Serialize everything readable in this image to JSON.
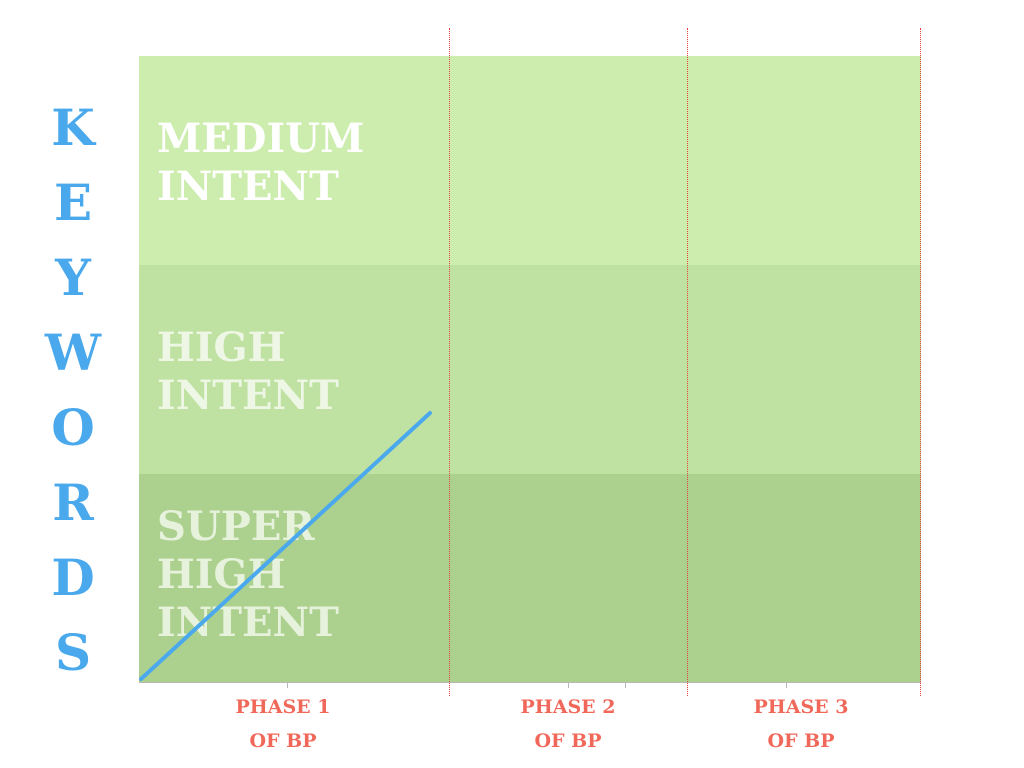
{
  "vertical_title_letters": [
    "K",
    "E",
    "Y",
    "W",
    "O",
    "R",
    "D",
    "S"
  ],
  "bands": [
    {
      "label": "MEDIUM\nINTENT",
      "color": "#ccedae",
      "text_color": "#ffffff"
    },
    {
      "label": "HIGH\nINTENT",
      "color": "#bfe2a2",
      "text_color": "#eef7e6"
    },
    {
      "label": "SUPER\nHIGH\nINTENT",
      "color": "#acd08e",
      "text_color": "#e7f2dd"
    }
  ],
  "phases": [
    {
      "label": "PHASE 1\nOF BP"
    },
    {
      "label": "PHASE 2\nOF BP"
    },
    {
      "label": "PHASE 3\nOF BP"
    }
  ],
  "colors": {
    "title": "#4aa8ec",
    "phase_label": "#f0685a",
    "divider": "#e8413a",
    "growth_line": "#4aa8ec"
  }
}
